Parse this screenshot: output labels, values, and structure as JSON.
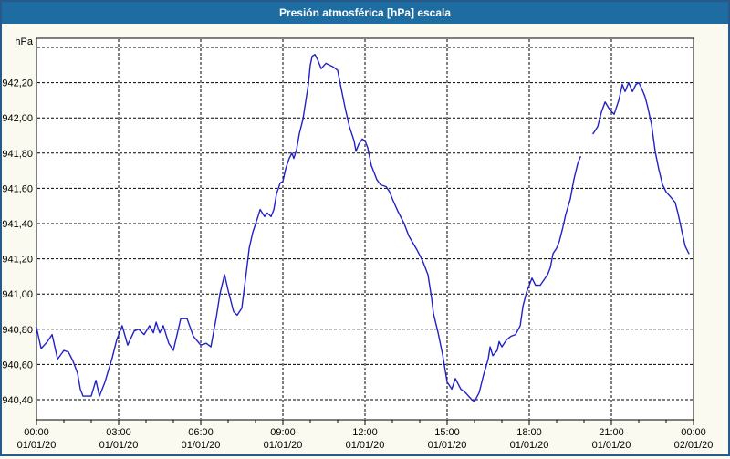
{
  "window": {
    "title": "Presión atmosférica [hPa] escala"
  },
  "chart_data": {
    "type": "line",
    "title": "Presión atmosférica [hPa] escala",
    "ylabel": "hPa",
    "xlabel": "",
    "x_unit": "time of day (hours)",
    "ylim": [
      940.29,
      942.45
    ],
    "xlim_hours": [
      0,
      24
    ],
    "grid": "dashed-black",
    "legend": "none",
    "y_gridlines": [
      {
        "value": 942.4,
        "label": ""
      },
      {
        "value": 942.2,
        "label": "942,20"
      },
      {
        "value": 942.0,
        "label": "942,00"
      },
      {
        "value": 941.8,
        "label": "941,80"
      },
      {
        "value": 941.6,
        "label": "941,60"
      },
      {
        "value": 941.4,
        "label": "941,40"
      },
      {
        "value": 941.2,
        "label": "941,20"
      },
      {
        "value": 941.0,
        "label": "941,00"
      },
      {
        "value": 940.8,
        "label": "940,80"
      },
      {
        "value": 940.6,
        "label": "940,60"
      },
      {
        "value": 940.4,
        "label": "940,40"
      }
    ],
    "x_ticks": [
      {
        "hour": 0,
        "time": "00:00",
        "date": "01/01/20"
      },
      {
        "hour": 3,
        "time": "03:00",
        "date": "01/01/20"
      },
      {
        "hour": 6,
        "time": "06:00",
        "date": "01/01/20"
      },
      {
        "hour": 9,
        "time": "09:00",
        "date": "01/01/20"
      },
      {
        "hour": 12,
        "time": "12:00",
        "date": "01/01/20"
      },
      {
        "hour": 15,
        "time": "15:00",
        "date": "01/01/20"
      },
      {
        "hour": 18,
        "time": "18:00",
        "date": "01/01/20"
      },
      {
        "hour": 21,
        "time": "21:00",
        "date": "01/01/20"
      },
      {
        "hour": 24,
        "time": "00:00",
        "date": "02/01/20"
      }
    ],
    "minor_tick_hours": 1,
    "colors": {
      "line": "#2121c8",
      "plot_bg": "#ffffff",
      "page_bg": "#fbfaf0",
      "titlebar_bg": "#1d6da3",
      "window_border": "#27598a",
      "grid": "#000000",
      "text": "#000000"
    },
    "series": [
      {
        "name": "Presión atmosférica",
        "unit": "hPa",
        "segments": [
          [
            [
              0.0,
              940.81
            ],
            [
              0.17,
              940.69
            ],
            [
              0.4,
              940.73
            ],
            [
              0.57,
              940.77
            ],
            [
              0.77,
              940.63
            ],
            [
              1.0,
              940.68
            ],
            [
              1.17,
              940.67
            ],
            [
              1.33,
              940.62
            ],
            [
              1.5,
              940.55
            ],
            [
              1.6,
              940.46
            ],
            [
              1.7,
              940.42
            ],
            [
              2.0,
              940.42
            ],
            [
              2.17,
              940.51
            ],
            [
              2.3,
              940.42
            ],
            [
              2.5,
              940.5
            ],
            [
              2.77,
              940.64
            ],
            [
              2.93,
              940.74
            ],
            [
              3.13,
              940.82
            ],
            [
              3.33,
              940.71
            ],
            [
              3.57,
              940.79
            ],
            [
              3.73,
              940.8
            ],
            [
              3.93,
              940.77
            ],
            [
              4.13,
              940.82
            ],
            [
              4.27,
              940.78
            ],
            [
              4.37,
              940.84
            ],
            [
              4.5,
              940.78
            ],
            [
              4.63,
              940.82
            ],
            [
              4.83,
              940.72
            ],
            [
              5.0,
              940.68
            ],
            [
              5.27,
              940.86
            ],
            [
              5.5,
              940.86
            ],
            [
              5.73,
              940.76
            ],
            [
              6.0,
              940.71
            ],
            [
              6.2,
              940.72
            ],
            [
              6.37,
              940.7
            ],
            [
              6.57,
              940.87
            ],
            [
              6.7,
              941.0
            ],
            [
              6.87,
              941.11
            ],
            [
              7.0,
              941.02
            ],
            [
              7.2,
              940.9
            ],
            [
              7.33,
              940.88
            ],
            [
              7.5,
              940.92
            ],
            [
              7.67,
              941.13
            ],
            [
              7.77,
              941.26
            ],
            [
              7.9,
              941.35
            ],
            [
              8.07,
              941.43
            ],
            [
              8.17,
              941.48
            ],
            [
              8.33,
              941.44
            ],
            [
              8.43,
              941.46
            ],
            [
              8.57,
              941.44
            ],
            [
              8.67,
              941.48
            ],
            [
              8.77,
              941.57
            ],
            [
              8.9,
              941.63
            ],
            [
              9.0,
              941.64
            ],
            [
              9.1,
              941.71
            ],
            [
              9.23,
              941.77
            ],
            [
              9.33,
              941.8
            ],
            [
              9.4,
              941.77
            ],
            [
              9.5,
              941.82
            ],
            [
              9.6,
              941.91
            ],
            [
              9.73,
              941.99
            ],
            [
              9.83,
              942.09
            ],
            [
              9.93,
              942.19
            ],
            [
              10.0,
              942.3
            ],
            [
              10.07,
              942.35
            ],
            [
              10.17,
              942.36
            ],
            [
              10.27,
              942.33
            ],
            [
              10.4,
              942.28
            ],
            [
              10.57,
              942.31
            ],
            [
              10.83,
              942.29
            ],
            [
              11.0,
              942.27
            ],
            [
              11.1,
              942.19
            ],
            [
              11.27,
              942.06
            ],
            [
              11.43,
              941.95
            ],
            [
              11.6,
              941.87
            ],
            [
              11.67,
              941.81
            ],
            [
              11.77,
              941.85
            ],
            [
              11.9,
              941.88
            ],
            [
              12.0,
              941.87
            ],
            [
              12.1,
              941.83
            ],
            [
              12.23,
              941.73
            ],
            [
              12.43,
              941.65
            ],
            [
              12.57,
              941.62
            ],
            [
              12.77,
              941.61
            ],
            [
              12.9,
              941.58
            ],
            [
              13.0,
              941.54
            ],
            [
              13.2,
              941.47
            ],
            [
              13.43,
              941.4
            ],
            [
              13.6,
              941.33
            ],
            [
              13.9,
              941.25
            ],
            [
              14.1,
              941.19
            ],
            [
              14.3,
              941.11
            ],
            [
              14.43,
              940.98
            ],
            [
              14.5,
              940.89
            ],
            [
              14.67,
              940.78
            ],
            [
              14.83,
              940.66
            ],
            [
              15.0,
              940.5
            ],
            [
              15.17,
              940.46
            ],
            [
              15.3,
              940.52
            ],
            [
              15.5,
              940.46
            ],
            [
              15.67,
              940.44
            ],
            [
              15.9,
              940.4
            ],
            [
              16.0,
              940.39
            ],
            [
              16.17,
              940.44
            ],
            [
              16.33,
              940.54
            ],
            [
              16.5,
              940.63
            ],
            [
              16.57,
              940.7
            ],
            [
              16.67,
              940.65
            ],
            [
              16.83,
              940.68
            ],
            [
              16.9,
              940.73
            ],
            [
              17.0,
              940.7
            ],
            [
              17.17,
              940.74
            ],
            [
              17.33,
              940.76
            ],
            [
              17.5,
              940.77
            ],
            [
              17.67,
              940.82
            ],
            [
              17.77,
              940.93
            ],
            [
              17.9,
              941.01
            ],
            [
              18.0,
              941.05
            ],
            [
              18.1,
              941.09
            ],
            [
              18.23,
              941.05
            ],
            [
              18.4,
              941.05
            ],
            [
              18.67,
              941.11
            ],
            [
              18.77,
              941.15
            ],
            [
              18.87,
              941.23
            ],
            [
              19.0,
              941.26
            ],
            [
              19.1,
              941.3
            ],
            [
              19.23,
              941.38
            ],
            [
              19.33,
              941.45
            ],
            [
              19.5,
              941.54
            ],
            [
              19.63,
              941.65
            ],
            [
              19.77,
              941.74
            ],
            [
              19.87,
              941.78
            ]
          ],
          [
            [
              20.33,
              941.91
            ],
            [
              20.5,
              941.95
            ],
            [
              20.63,
              942.03
            ],
            [
              20.77,
              942.09
            ],
            [
              20.93,
              942.05
            ],
            [
              21.1,
              942.02
            ],
            [
              21.27,
              942.1
            ],
            [
              21.4,
              942.19
            ],
            [
              21.5,
              942.15
            ],
            [
              21.63,
              942.2
            ],
            [
              21.77,
              942.15
            ],
            [
              21.9,
              942.19
            ],
            [
              22.0,
              942.2
            ],
            [
              22.1,
              942.17
            ],
            [
              22.23,
              942.12
            ],
            [
              22.33,
              942.06
            ],
            [
              22.47,
              941.96
            ],
            [
              22.6,
              941.81
            ],
            [
              22.73,
              941.71
            ],
            [
              22.87,
              941.62
            ],
            [
              23.0,
              941.58
            ],
            [
              23.17,
              941.55
            ],
            [
              23.33,
              941.52
            ],
            [
              23.43,
              941.46
            ],
            [
              23.57,
              941.36
            ],
            [
              23.7,
              941.27
            ],
            [
              23.83,
              941.23
            ]
          ]
        ]
      }
    ]
  }
}
